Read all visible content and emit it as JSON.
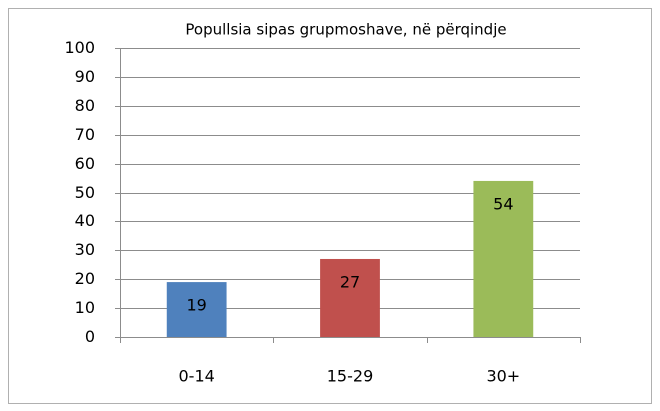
{
  "chart_data": {
    "type": "bar",
    "title": "Popullsia sipas grupmoshave, në përqindje",
    "categories": [
      "0-14",
      "15-29",
      "30+"
    ],
    "values": [
      19,
      27,
      54
    ],
    "colors": [
      "#4f81bd",
      "#c0504d",
      "#9bbb59"
    ],
    "ylim": [
      0,
      100
    ],
    "yticks": [
      0,
      10,
      20,
      30,
      40,
      50,
      60,
      70,
      80,
      90,
      100
    ],
    "grid": true
  }
}
